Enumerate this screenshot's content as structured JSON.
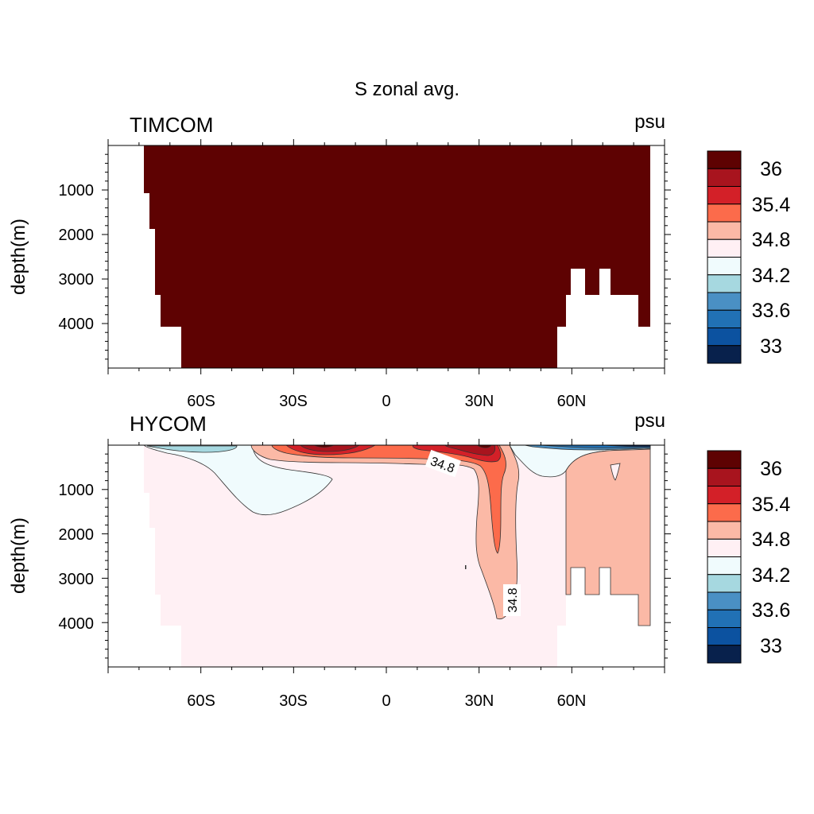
{
  "figure": {
    "title": "S zonal avg."
  },
  "colors": {
    "land": "#ffffff",
    "levels": [
      "#08214c",
      "#0c52a0",
      "#2171b5",
      "#4a90c4",
      "#a6d8e0",
      "#f0fbfd",
      "#fff0f4",
      "#fbb9a6",
      "#fc6b4b",
      "#d32028",
      "#a8141e",
      "#5e0202"
    ]
  },
  "colorbar": {
    "labels": [
      "36",
      "35.4",
      "34.8",
      "34.2",
      "33.6",
      "33"
    ]
  },
  "chart_data": [
    {
      "type": "heatmap",
      "title": "TIMCOM",
      "units": "psu",
      "ylabel": "depth(m)",
      "xlabel": "",
      "xlim": [
        -90,
        90
      ],
      "ylim": [
        5000,
        0
      ],
      "xticks": [
        -60,
        -30,
        0,
        30,
        60
      ],
      "xtick_labels": [
        "60S",
        "30S",
        "0",
        "30N",
        "60N"
      ],
      "yticks": [
        1000,
        2000,
        3000,
        4000
      ],
      "ytick_labels": [
        "1000",
        "2000",
        "3000",
        "4000"
      ],
      "fill_level": "36",
      "contour_labels": []
    },
    {
      "type": "heatmap",
      "title": "HYCOM",
      "units": "psu",
      "ylabel": "depth(m)",
      "xlabel": "",
      "xlim": [
        -90,
        90
      ],
      "ylim": [
        5000,
        0
      ],
      "xticks": [
        -60,
        -30,
        0,
        30,
        60
      ],
      "xtick_labels": [
        "60S",
        "30S",
        "0",
        "30N",
        "60N"
      ],
      "yticks": [
        1000,
        2000,
        3000,
        4000
      ],
      "ytick_labels": [
        "1000",
        "2000",
        "3000",
        "4000"
      ],
      "contour_labels": [
        {
          "text": "34.8",
          "lat": 18,
          "depth": 420,
          "angle": 20
        },
        {
          "text": "34.8",
          "lat": 41,
          "depth": 3480,
          "angle": -90
        }
      ]
    }
  ]
}
